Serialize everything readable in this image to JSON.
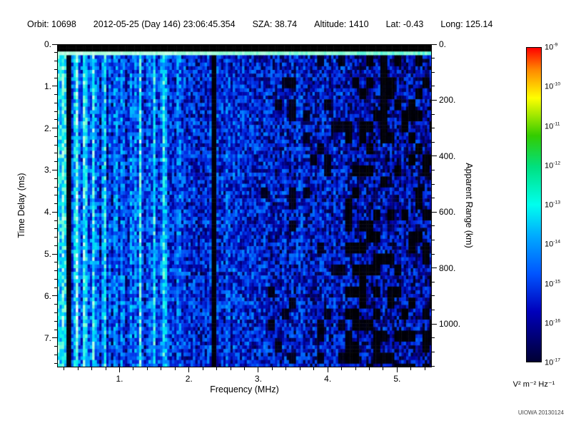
{
  "header": {
    "fields": [
      "Orbit: 10698",
      "2012-05-25 (Day 146) 23:06:45.354",
      "SZA: 38.74",
      "Altitude: 1410",
      "Lat: -0.43",
      "Long: 125.14"
    ]
  },
  "chart_data": {
    "type": "heatmap",
    "title": "",
    "xlabel": "Frequency (MHz)",
    "ylabel_left": "Time Delay (ms)",
    "ylabel_right": "Apparent Range (km)",
    "x_range_mhz": [
      0.1,
      5.5
    ],
    "x_ticks": [
      1,
      2,
      3,
      4,
      5
    ],
    "x_tick_labels": [
      "1.",
      "2.",
      "3.",
      "4.",
      "5."
    ],
    "x_minor_step": 0.2,
    "y_range_ms": [
      0,
      7.7
    ],
    "y_ticks": [
      0,
      1,
      2,
      3,
      4,
      5,
      6,
      7
    ],
    "y_tick_labels": [
      "0.",
      "1.",
      "2.",
      "3.",
      "4.",
      "5.",
      "6.",
      "7."
    ],
    "y_minor_step": 0.2,
    "right_axis_km_per_ms": 150,
    "right_ticks_km": [
      0,
      200,
      400,
      600,
      800,
      1000
    ],
    "right_tick_labels": [
      "0.",
      "200.",
      "400.",
      "600.",
      "800.",
      "1000."
    ],
    "right_minor_step_km": 50,
    "grid": false,
    "colorbar": {
      "scale": "log",
      "exponents": [
        -9,
        -10,
        -11,
        -12,
        -13,
        -14,
        -15,
        -16,
        -17
      ],
      "unit_label": "V² m⁻² Hz⁻¹",
      "gradient_stops": [
        [
          0,
          "#ff0000"
        ],
        [
          7,
          "#ff8800"
        ],
        [
          16,
          "#ffff00"
        ],
        [
          28,
          "#33cc00"
        ],
        [
          38,
          "#00e080"
        ],
        [
          50,
          "#00ffee"
        ],
        [
          60,
          "#00aaff"
        ],
        [
          72,
          "#0055ff"
        ],
        [
          84,
          "#0000bb"
        ],
        [
          100,
          "#000033"
        ]
      ]
    },
    "features": {
      "seed": 42,
      "blackout_top_ms": 0.17,
      "surface_line": {
        "t_ms": 0.24,
        "half_width_ms": 0.045,
        "intensity": 0.92
      },
      "bright_stripes": [
        {
          "f": 0.13,
          "amp": 0.4
        },
        {
          "f": 0.2,
          "amp": 0.32
        },
        {
          "f": 0.38,
          "amp": 0.3
        },
        {
          "f": 0.5,
          "amp": 0.25
        },
        {
          "f": 0.62,
          "amp": 0.3
        },
        {
          "f": 0.78,
          "amp": 0.25
        },
        {
          "f": 0.95,
          "amp": 0.28
        },
        {
          "f": 1.3,
          "amp": 0.38
        },
        {
          "f": 1.5,
          "amp": 0.25
        },
        {
          "f": 1.65,
          "amp": 0.3
        },
        {
          "f": 2.55,
          "amp": 0.1
        },
        {
          "f": 3.6,
          "amp": 0.1
        }
      ],
      "stripe_half_width_mhz": 0.04,
      "dark_stripes": [
        {
          "f": 0.27,
          "w": 0.025
        },
        {
          "f": 2.36,
          "w": 0.04
        }
      ],
      "noise_bands": [
        {
          "f_max": 0.65,
          "base": 0.45
        },
        {
          "f_max": 1.9,
          "base": 0.4
        },
        {
          "f_max": 3.0,
          "base": 0.32
        },
        {
          "f_max": 4.25,
          "base": 0.28
        },
        {
          "f_max": 5.5,
          "base": 0.24
        }
      ],
      "colormap_stops": [
        [
          0,
          "#000000"
        ],
        [
          0.1,
          "#000040"
        ],
        [
          0.22,
          "#0000a0"
        ],
        [
          0.35,
          "#0030e8"
        ],
        [
          0.48,
          "#0078ff"
        ],
        [
          0.6,
          "#00c0ff"
        ],
        [
          0.72,
          "#00f0f0"
        ],
        [
          0.85,
          "#90ffd0"
        ],
        [
          1,
          "#ffffff"
        ]
      ]
    }
  },
  "footer": {
    "watermark": "UIOWA 20130124"
  }
}
